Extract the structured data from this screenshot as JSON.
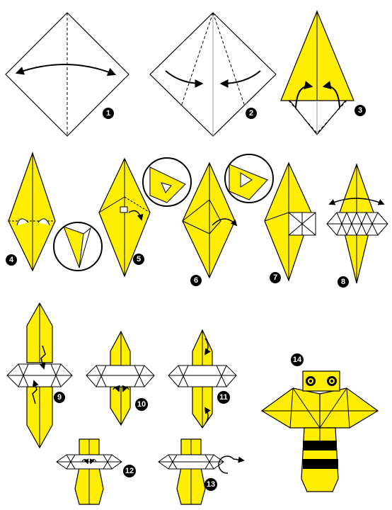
{
  "diagram": {
    "steps": [
      {
        "label": "1"
      },
      {
        "label": "2"
      },
      {
        "label": "3"
      },
      {
        "label": "4"
      },
      {
        "label": "5"
      },
      {
        "label": "6"
      },
      {
        "label": "7"
      },
      {
        "label": "8"
      },
      {
        "label": "9"
      },
      {
        "label": "10"
      },
      {
        "label": "11"
      },
      {
        "label": "12"
      },
      {
        "label": "13"
      },
      {
        "label": "14"
      }
    ],
    "colors": {
      "paper_yellow": "#ffee00",
      "paper_white": "#ffffff",
      "bee_stripe": "#000000",
      "outline": "#000000"
    }
  }
}
